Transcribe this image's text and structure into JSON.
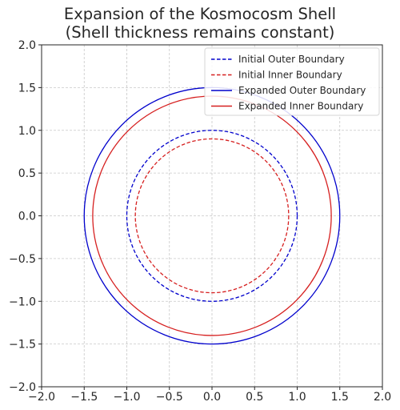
{
  "chart_data": {
    "type": "line",
    "title": "Expansion of the Kosmocosm Shell",
    "subtitle": "(Shell thickness remains constant)",
    "xlabel": "",
    "ylabel": "",
    "xlim": [
      -2.0,
      2.0
    ],
    "ylim": [
      -2.0,
      2.0
    ],
    "xticks": [
      "−2.0",
      "−1.5",
      "−1.0",
      "−0.5",
      "0.0",
      "0.5",
      "1.0",
      "1.5",
      "2.0"
    ],
    "yticks": [
      "−2.0",
      "−1.5",
      "−1.0",
      "−0.5",
      "0.0",
      "0.5",
      "1.0",
      "1.5",
      "2.0"
    ],
    "xtick_values": [
      -2.0,
      -1.5,
      -1.0,
      -0.5,
      0.0,
      0.5,
      1.0,
      1.5,
      2.0
    ],
    "ytick_values": [
      -2.0,
      -1.5,
      -1.0,
      -0.5,
      0.0,
      0.5,
      1.0,
      1.5,
      2.0
    ],
    "grid": true,
    "legend_position": "top-right",
    "series": [
      {
        "name": "Initial Outer Boundary",
        "shape": "circle",
        "center": [
          0,
          0
        ],
        "radius": 1.0,
        "color": "#0000cc",
        "style": "dashed"
      },
      {
        "name": "Initial Inner Boundary",
        "shape": "circle",
        "center": [
          0,
          0
        ],
        "radius": 0.9,
        "color": "#d62020",
        "style": "dashed"
      },
      {
        "name": "Expanded Outer Boundary",
        "shape": "circle",
        "center": [
          0,
          0
        ],
        "radius": 1.5,
        "color": "#0000cc",
        "style": "solid"
      },
      {
        "name": "Expanded Inner Boundary",
        "shape": "circle",
        "center": [
          0,
          0
        ],
        "radius": 1.4,
        "color": "#d62020",
        "style": "solid"
      }
    ]
  }
}
